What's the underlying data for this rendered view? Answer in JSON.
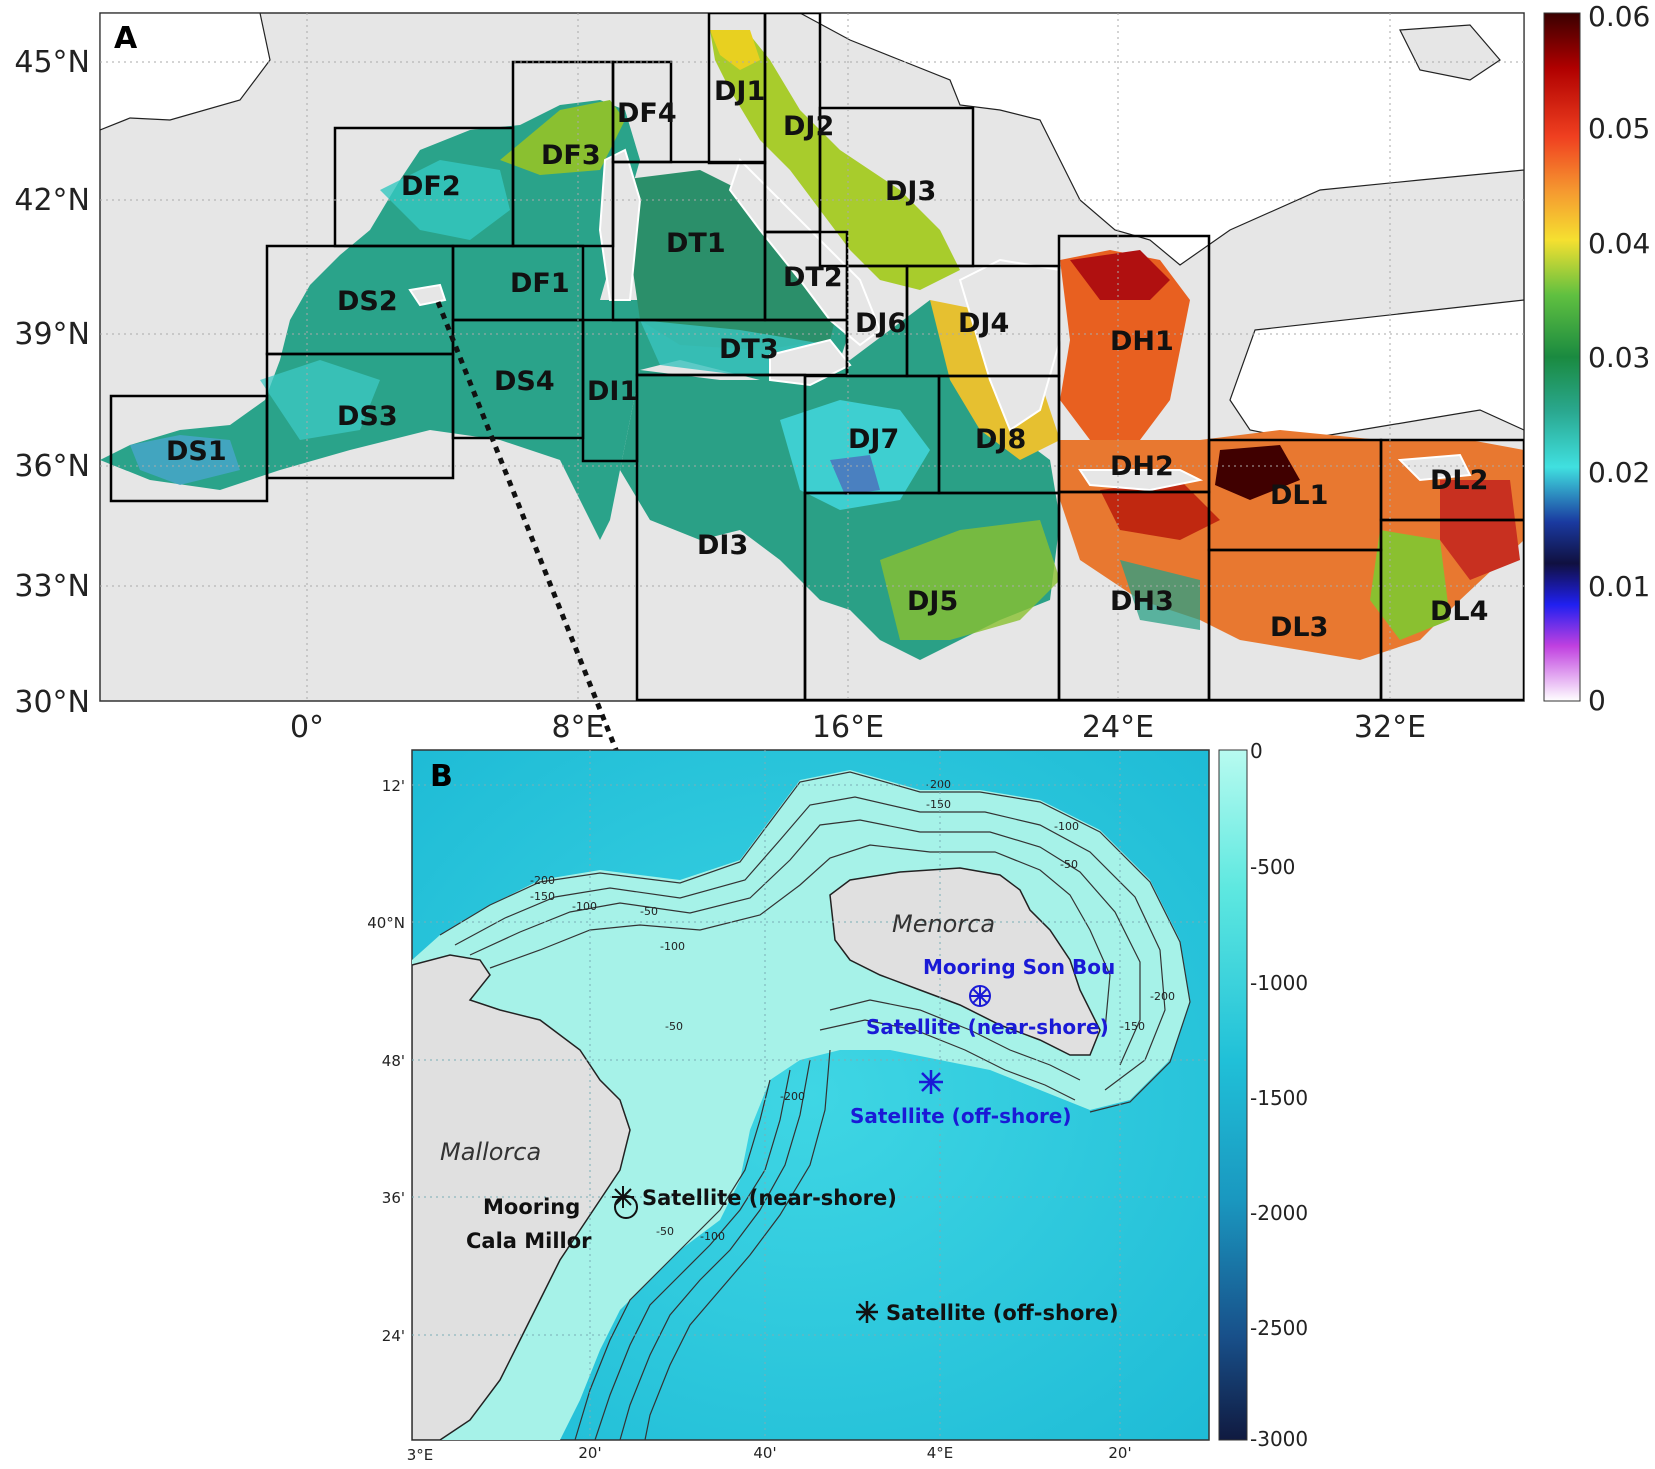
{
  "panel_a": {
    "label": "A",
    "lat_ticks": [
      "45°N",
      "42°N",
      "39°N",
      "36°N",
      "33°N",
      "30°N"
    ],
    "lon_ticks": [
      "0°",
      "8°E",
      "16°E",
      "24°E",
      "32°E"
    ],
    "colorbar_ticks": [
      "0.06",
      "0.05",
      "0.04",
      "0.03",
      "0.02",
      "0.01",
      "0"
    ],
    "regions": [
      {
        "label": "DJ1"
      },
      {
        "label": "DJ2"
      },
      {
        "label": "DF4"
      },
      {
        "label": "DF3"
      },
      {
        "label": "DF2"
      },
      {
        "label": "DJ3"
      },
      {
        "label": "DT1"
      },
      {
        "label": "DT2"
      },
      {
        "label": "DF1"
      },
      {
        "label": "DS2"
      },
      {
        "label": "DJ6"
      },
      {
        "label": "DJ4"
      },
      {
        "label": "DH1"
      },
      {
        "label": "DT3"
      },
      {
        "label": "DS4"
      },
      {
        "label": "DI1"
      },
      {
        "label": "DS3"
      },
      {
        "label": "DJ7"
      },
      {
        "label": "DJ8"
      },
      {
        "label": "DS1"
      },
      {
        "label": "DH2"
      },
      {
        "label": "DL1"
      },
      {
        "label": "DL2"
      },
      {
        "label": "DI3"
      },
      {
        "label": "DJ5"
      },
      {
        "label": "DH3"
      },
      {
        "label": "DL3"
      },
      {
        "label": "DL4"
      }
    ],
    "colors": {
      "land": "#e6e6e6",
      "low": "#2fd0c8",
      "mid": "#1f8a4a",
      "high": "#f0e030",
      "top": "#d01818"
    }
  },
  "panel_b": {
    "label": "B",
    "lat_ticks": [
      "12'",
      "40°N",
      "48'",
      "36'",
      "24'"
    ],
    "lon_ticks": [
      "3°E",
      "20'",
      "40'",
      "4°E",
      "20'"
    ],
    "colorbar_ticks": [
      "0",
      "-500",
      "-1000",
      "-1500",
      "-2000",
      "-2500",
      "-3000"
    ],
    "islands": {
      "menorca": "Menorca",
      "mallorca": "Mallorca"
    },
    "sites": {
      "mooring_son_bou": "Mooring Son Bou",
      "sat_near_menorca": "Satellite (near-shore)",
      "sat_off_menorca": "Satellite (off-shore)",
      "mooring_cala_millor_1": "Mooring",
      "mooring_cala_millor_2": "Cala Millor",
      "sat_near_mallorca": "Satellite (near-shore)",
      "sat_off_mallorca": "Satellite (off-shore)"
    },
    "contour_labels": [
      "-200",
      "-150",
      "-100",
      "-50"
    ],
    "colors": {
      "land": "#e0e0e0",
      "shelf": "#9ff2e6",
      "deep": "#29c8dc",
      "marker_blue": "#1a1ad6"
    }
  }
}
